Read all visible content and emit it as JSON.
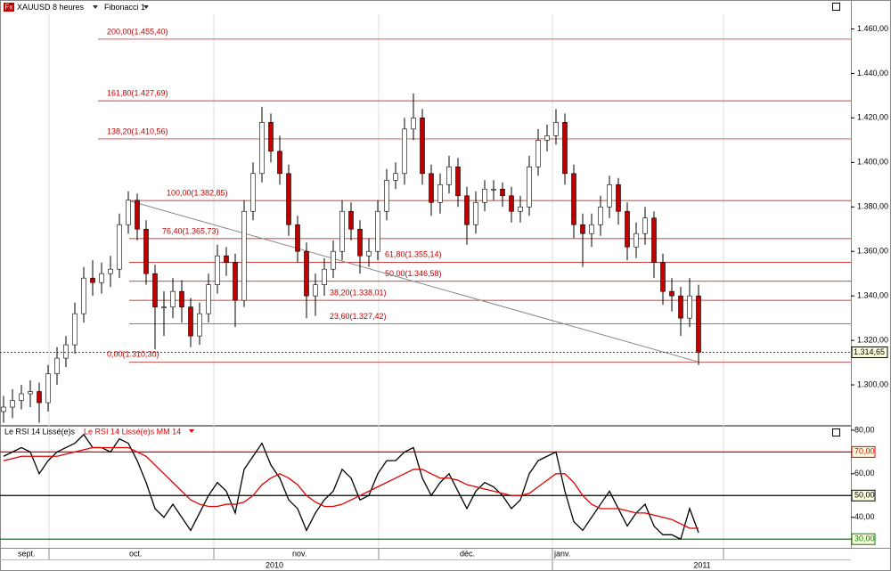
{
  "header": {
    "icon": "Fx",
    "symbol": "XAUUSD 8 heures",
    "tool": "Fibonacci 1"
  },
  "chart_data": [
    {
      "type": "candlestick",
      "open": [
        1288,
        1290,
        1293,
        1296,
        1297,
        1292,
        1305,
        1312,
        1318,
        1332,
        1348,
        1346,
        1350,
        1352,
        1372,
        1383,
        1370,
        1350,
        1335,
        1335,
        1342,
        1335,
        1322,
        1332,
        1345,
        1358,
        1355,
        1338,
        1378,
        1395,
        1418,
        1405,
        1395,
        1372,
        1360,
        1340,
        1345,
        1352,
        1360,
        1378,
        1370,
        1358,
        1360,
        1378,
        1392,
        1395,
        1415,
        1420,
        1395,
        1382,
        1390,
        1398,
        1385,
        1372,
        1382,
        1388,
        1388,
        1385,
        1378,
        1380,
        1398,
        1410,
        1412,
        1418,
        1395,
        1372,
        1368,
        1372,
        1380,
        1390,
        1378,
        1362,
        1368,
        1375,
        1355,
        1342,
        1340,
        1330,
        1340
      ],
      "high": [
        1295,
        1298,
        1300,
        1302,
        1301,
        1309,
        1317,
        1322,
        1337,
        1353,
        1356,
        1355,
        1358,
        1377,
        1387,
        1386,
        1374,
        1354,
        1342,
        1348,
        1347,
        1339,
        1337,
        1350,
        1363,
        1362,
        1359,
        1383,
        1400,
        1425,
        1422,
        1412,
        1399,
        1376,
        1364,
        1350,
        1357,
        1365,
        1383,
        1382,
        1374,
        1366,
        1383,
        1397,
        1400,
        1420,
        1431,
        1424,
        1399,
        1395,
        1403,
        1402,
        1389,
        1387,
        1392,
        1392,
        1391,
        1389,
        1385,
        1403,
        1415,
        1417,
        1424,
        1422,
        1399,
        1377,
        1377,
        1385,
        1394,
        1393,
        1382,
        1373,
        1380,
        1378,
        1359,
        1348,
        1344,
        1348,
        1345
      ],
      "low": [
        1283,
        1285,
        1289,
        1290,
        1283,
        1288,
        1300,
        1308,
        1314,
        1328,
        1340,
        1341,
        1344,
        1348,
        1368,
        1365,
        1345,
        1316,
        1322,
        1330,
        1328,
        1317,
        1318,
        1328,
        1341,
        1349,
        1326,
        1335,
        1374,
        1391,
        1400,
        1390,
        1367,
        1355,
        1330,
        1331,
        1340,
        1348,
        1356,
        1365,
        1350,
        1353,
        1356,
        1374,
        1388,
        1390,
        1410,
        1390,
        1376,
        1377,
        1386,
        1380,
        1363,
        1368,
        1378,
        1383,
        1380,
        1373,
        1373,
        1376,
        1394,
        1405,
        1408,
        1390,
        1366,
        1353,
        1362,
        1367,
        1375,
        1372,
        1356,
        1357,
        1363,
        1348,
        1336,
        1333,
        1322,
        1326,
        1309
      ],
      "close": [
        1290,
        1293,
        1296,
        1297,
        1292,
        1305,
        1312,
        1318,
        1332,
        1348,
        1346,
        1350,
        1352,
        1372,
        1383,
        1370,
        1350,
        1335,
        1335,
        1342,
        1335,
        1322,
        1332,
        1345,
        1358,
        1355,
        1338,
        1378,
        1395,
        1418,
        1405,
        1395,
        1372,
        1360,
        1340,
        1345,
        1352,
        1360,
        1378,
        1370,
        1358,
        1360,
        1378,
        1392,
        1395,
        1415,
        1420,
        1395,
        1382,
        1390,
        1398,
        1385,
        1372,
        1382,
        1388,
        1388,
        1385,
        1378,
        1380,
        1398,
        1410,
        1412,
        1418,
        1395,
        1372,
        1368,
        1372,
        1380,
        1390,
        1378,
        1362,
        1368,
        1375,
        1355,
        1342,
        1340,
        1330,
        1340,
        1314.65
      ],
      "up_color": "#ffffff",
      "down_color": "#c00000",
      "ylim": [
        1282,
        1473
      ],
      "yticks": [
        {
          "value": 1300,
          "label": "1.300,00"
        },
        {
          "value": 1320,
          "label": "1.320,00"
        },
        {
          "value": 1340,
          "label": "1.340,00"
        },
        {
          "value": 1360,
          "label": "1.360,00"
        },
        {
          "value": 1380,
          "label": "1.380,00"
        },
        {
          "value": 1400,
          "label": "1.400,00"
        },
        {
          "value": 1420,
          "label": "1.420,00"
        },
        {
          "value": 1440,
          "label": "1.440,00"
        },
        {
          "value": 1460,
          "label": "1.460,00"
        }
      ],
      "fib_color": "#c00000",
      "fib_levels": [
        {
          "value": 1455.4,
          "label": "200,00(1.455,40)"
        },
        {
          "value": 1427.69,
          "label": "161,80(1.427,69)"
        },
        {
          "value": 1410.56,
          "label": "138,20(1.410,56)"
        },
        {
          "value": 1382.85,
          "label": "100,00(1.382,85)"
        },
        {
          "value": 1365.73,
          "label": "76,40(1.365,73)"
        },
        {
          "value": 1355.14,
          "label": "61,80(1.355,14)"
        },
        {
          "value": 1346.58,
          "label": "50,00(1.346,58)"
        },
        {
          "value": 1338.01,
          "label": "38,20(1.338,01)"
        },
        {
          "value": 1327.42,
          "label": "23,60(1.327,42)"
        },
        {
          "value": 1310.3,
          "label": "0,00(1.310,30)"
        }
      ],
      "last_price": {
        "value": 1314.65,
        "label": "1.314,65"
      }
    },
    {
      "type": "line",
      "series": [
        {
          "name": "Le RSI 14 Lissé(e)s",
          "color": "#000000",
          "values": [
            68,
            70,
            72,
            70,
            60,
            66,
            70,
            72,
            74,
            78,
            72,
            72,
            70,
            76,
            74,
            66,
            56,
            44,
            40,
            46,
            40,
            34,
            42,
            50,
            56,
            52,
            42,
            62,
            68,
            74,
            64,
            58,
            48,
            44,
            34,
            42,
            48,
            52,
            62,
            58,
            48,
            50,
            60,
            66,
            66,
            70,
            72,
            58,
            50,
            56,
            60,
            52,
            44,
            52,
            56,
            54,
            50,
            44,
            48,
            60,
            66,
            68,
            70,
            52,
            38,
            34,
            40,
            46,
            52,
            44,
            36,
            42,
            46,
            36,
            32,
            32,
            30,
            44,
            33
          ]
        },
        {
          "name": "Le RSI 14 Lissé(e)s MM 14",
          "color": "#e00000",
          "values": [
            66,
            67,
            68,
            68,
            68,
            68,
            68,
            69,
            70,
            71,
            72,
            72,
            72,
            72,
            72,
            70,
            68,
            64,
            60,
            56,
            52,
            48,
            46,
            45,
            45,
            46,
            46,
            47,
            50,
            55,
            58,
            60,
            58,
            55,
            50,
            47,
            45,
            45,
            46,
            48,
            50,
            52,
            54,
            56,
            58,
            60,
            62,
            62,
            60,
            58,
            58,
            57,
            55,
            54,
            53,
            52,
            51,
            50,
            50,
            51,
            54,
            57,
            60,
            60,
            56,
            50,
            46,
            44,
            44,
            44,
            43,
            42,
            42,
            41,
            40,
            39,
            37,
            35,
            35
          ]
        }
      ],
      "ylim": [
        26,
        82
      ],
      "yticks": [
        {
          "value": 30,
          "label": "30,00"
        },
        {
          "value": 40,
          "label": "40,00"
        },
        {
          "value": 50,
          "label": "50,00"
        },
        {
          "value": 60,
          "label": "60,00"
        },
        {
          "value": 70,
          "label": "70,00"
        },
        {
          "value": 80,
          "label": "80,00"
        }
      ],
      "levels": [
        {
          "value": 70,
          "color": "#e00000"
        },
        {
          "value": 50,
          "color": "#000000"
        },
        {
          "value": 30,
          "color": "#008000"
        }
      ]
    }
  ],
  "x_axis": {
    "months": [
      "sept.",
      "oct.",
      "nov.",
      "déc.",
      "janv."
    ],
    "years": [
      "2010",
      "2011"
    ]
  }
}
